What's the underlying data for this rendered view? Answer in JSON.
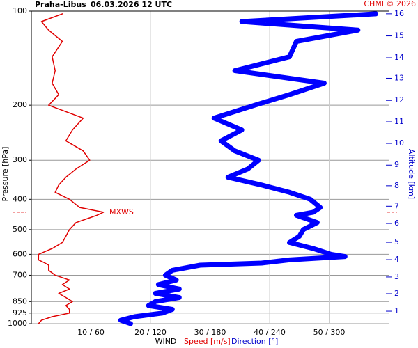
{
  "chart_data": {
    "type": "sounding",
    "location": "Praha-Libus",
    "datetime": "06.03.2026 12 UTC",
    "copyright": "CHMI © 2026",
    "ylabel": "Pressure [hPa]",
    "y2label": "Altitude [km]",
    "xlabel": "WIND",
    "ylog": true,
    "ylim": [
      1000,
      100
    ],
    "yticks": [
      100,
      200,
      300,
      400,
      500,
      600,
      700,
      850,
      925,
      1000
    ],
    "xlim": [
      0,
      60
    ],
    "x2lim": [
      0,
      360
    ],
    "xticks": [
      {
        "value": 10,
        "label": "10 / 60"
      },
      {
        "value": 20,
        "label": "20 / 120"
      },
      {
        "value": 30,
        "label": "30 / 180"
      },
      {
        "value": 40,
        "label": "40 / 240"
      },
      {
        "value": 50,
        "label": "50 / 300"
      }
    ],
    "grid": true,
    "altitude_km": [
      1,
      2,
      3,
      4,
      5,
      6,
      7,
      8,
      9,
      10,
      11,
      12,
      13,
      14,
      15,
      16
    ],
    "altitude_hpa": [
      912,
      802,
      709,
      624,
      549,
      478,
      421,
      362,
      311,
      265,
      226,
      193,
      164,
      141,
      120,
      102
    ],
    "max_wind": {
      "label": "MXWS",
      "pressure": 440
    },
    "pressure": [
      1000,
      975,
      950,
      925,
      900,
      875,
      850,
      825,
      800,
      775,
      750,
      725,
      700,
      675,
      650,
      640,
      625,
      610,
      600,
      575,
      550,
      525,
      500,
      475,
      450,
      440,
      425,
      400,
      380,
      360,
      340,
      320,
      300,
      280,
      260,
      240,
      220,
      200,
      185,
      170,
      155,
      140,
      125,
      115,
      108,
      102
    ],
    "series": [
      {
        "name": "Speed [m/s]",
        "color": "#e00000",
        "values": [
          1.2,
          1.7,
          3.5,
          6.4,
          6.4,
          5.8,
          6.9,
          5.8,
          4.6,
          6.4,
          5.2,
          6.4,
          4.0,
          2.9,
          2.9,
          2.3,
          1.2,
          1.2,
          1.2,
          3.5,
          5.2,
          5.8,
          6.4,
          7.5,
          11.0,
          12.1,
          8.1,
          6.4,
          4.0,
          4.6,
          5.8,
          7.5,
          9.8,
          8.7,
          5.8,
          6.9,
          8.7,
          2.9,
          4.6,
          3.5,
          4.0,
          3.5,
          5.2,
          2.9,
          1.7,
          5.2
        ]
      },
      {
        "name": "Direction [°]",
        "color": "#0000ff",
        "axis": "x2",
        "values": [
          100,
          90,
          104,
          132,
          142,
          118,
          125,
          149,
          125,
          149,
          128,
          146,
          135,
          142,
          170,
          232,
          260,
          316,
          302,
          284,
          260,
          270,
          274,
          288,
          267,
          284,
          291,
          281,
          260,
          232,
          198,
          218,
          229,
          205,
          191,
          212,
          184,
          225,
          260,
          295,
          205,
          260,
          267,
          329,
          212,
          347
        ]
      }
    ]
  }
}
